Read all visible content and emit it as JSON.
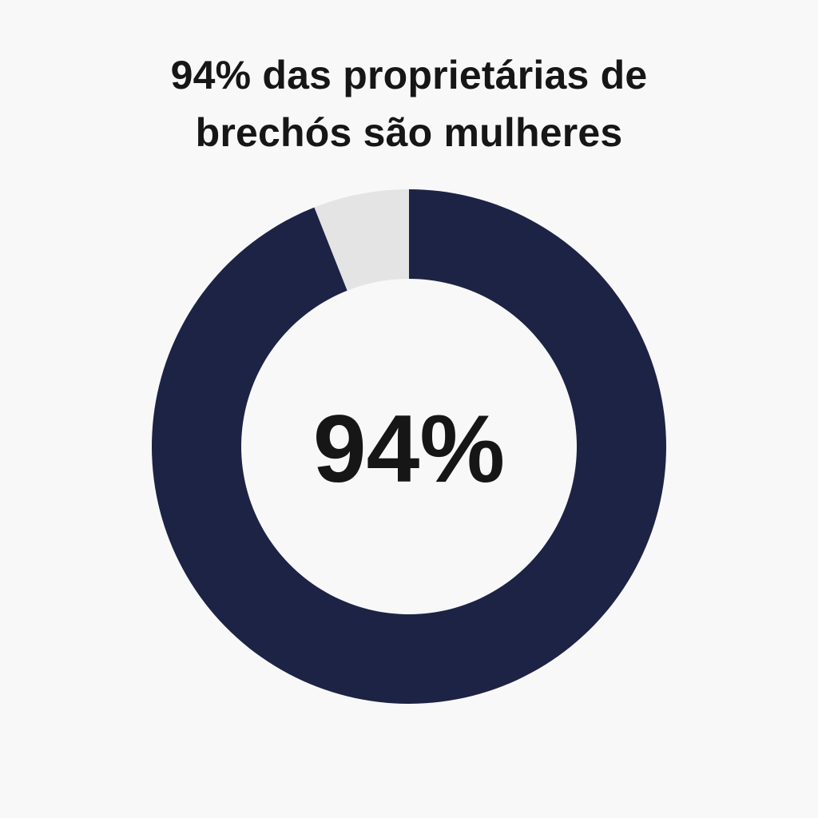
{
  "title": {
    "line1": "94% das proprietárias de",
    "line2": "brechós são mulheres"
  },
  "chart_data": {
    "type": "pie",
    "variant": "donut",
    "title": "94% das proprietárias de brechós são mulheres",
    "center_label": "94%",
    "slices": [
      {
        "value": 94,
        "color": "#1d2345"
      },
      {
        "value": 6,
        "color": "#e3e4e3"
      }
    ],
    "start_angle_deg": 0,
    "direction": "clockwise",
    "legend": "none"
  },
  "colors": {
    "background": "#f8f8f9",
    "accent": "#1d2345",
    "remainder": "#e3e4e3",
    "text": "#161616"
  }
}
